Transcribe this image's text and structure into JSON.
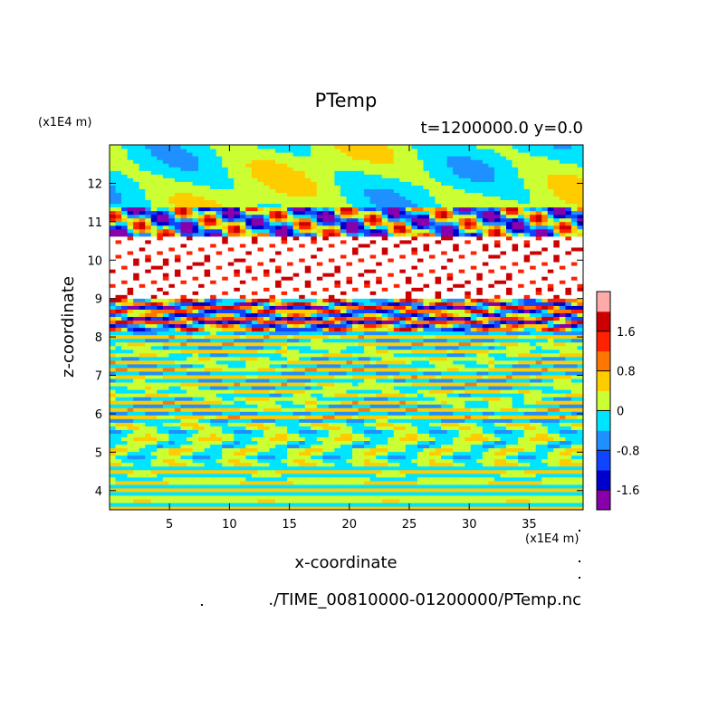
{
  "chart_data": {
    "type": "heatmap",
    "title": "PTemp",
    "subtitle": "t=1200000.0 y=0.0",
    "xlabel": "x-coordinate",
    "ylabel": "z-coordinate",
    "x_unit": "(x1E4 m)",
    "z_unit": "(x1E4 m)",
    "source_file": "./TIME_00810000-01200000/PTemp.nc",
    "xlim": [
      0,
      39.5
    ],
    "ylim": [
      3.5,
      13.0
    ],
    "x_ticks": [
      5,
      10,
      15,
      20,
      25,
      30,
      35
    ],
    "y_ticks": [
      4,
      5,
      6,
      7,
      8,
      9,
      10,
      11,
      12
    ],
    "colorbar": {
      "levels": [
        -2.0,
        -1.6,
        -1.2,
        -0.8,
        -0.4,
        0,
        0.4,
        0.8,
        1.2,
        1.6,
        2.0
      ],
      "tick_labels": [
        "1.6",
        "0.8",
        "0",
        "-0.8",
        "-1.6"
      ],
      "tick_values": [
        1.6,
        0.8,
        0,
        -0.8,
        -1.6
      ],
      "colors": [
        "#8800aa",
        "#0000cc",
        "#1144ff",
        "#1e90ff",
        "#00e5ff",
        "#ccff33",
        "#ffcc00",
        "#ff7700",
        "#ff2200",
        "#cc0000",
        "#ffaaaa"
      ]
    },
    "field_bands": [
      {
        "z": [
          11.4,
          13.0
        ],
        "pattern": "mixed lime and cyan patches"
      },
      {
        "z": [
          10.6,
          11.4
        ],
        "pattern": "strong blue and red wave crests"
      },
      {
        "z": [
          9.0,
          10.6
        ],
        "pattern": "saturated values (white) with fine multicolour filaments"
      },
      {
        "z": [
          8.2,
          9.0
        ],
        "pattern": "dark blue and red stripes"
      },
      {
        "z": [
          5.8,
          8.2
        ],
        "pattern": "alternating lime, cyan and orange horizontal layers"
      },
      {
        "z": [
          4.6,
          5.8
        ],
        "pattern": "lime and cyan convective cells"
      },
      {
        "z": [
          3.5,
          4.6
        ],
        "pattern": "alternating lime and cyan layers"
      }
    ]
  }
}
